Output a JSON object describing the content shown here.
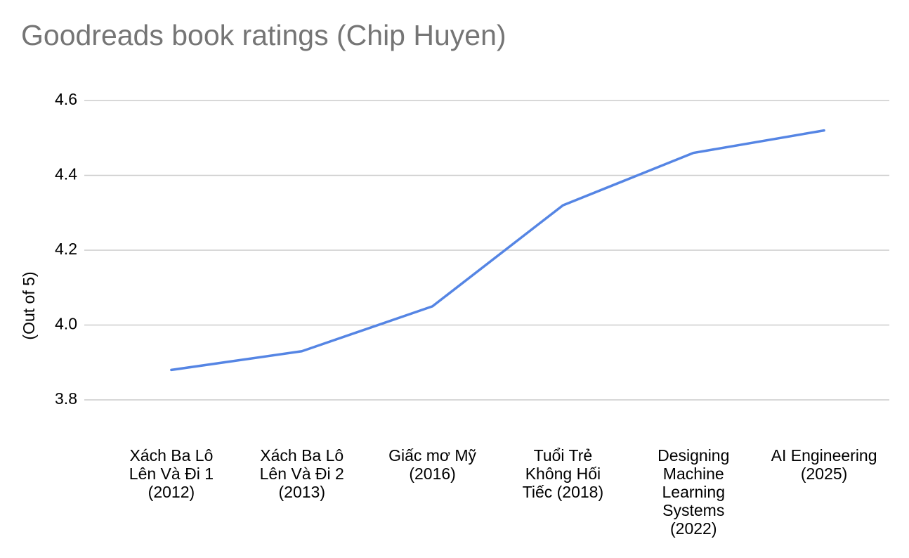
{
  "chart_data": {
    "type": "line",
    "title": "Goodreads book ratings (Chip Huyen)",
    "y_label": "(Out of 5)",
    "categories": [
      "Xách Ba Lô\nLên Và Đi 1\n(2012)",
      "Xách Ba Lô\nLên Và Đi 2\n(2013)",
      "Giấc mơ Mỹ\n(2016)",
      "Tuổi Trẻ\nKhông Hối\nTiếc (2018)",
      "Designing\nMachine\nLearning\nSystems\n(2022)",
      "AI Engineering\n(2025)"
    ],
    "values": [
      3.88,
      3.93,
      4.05,
      4.32,
      4.46,
      4.52
    ],
    "color": "#5585e4",
    "ylim": [
      3.8,
      4.6
    ],
    "yticks": [
      {
        "value": 3.8,
        "label": "3.8"
      },
      {
        "value": 4.0,
        "label": "4.0"
      },
      {
        "value": 4.2,
        "label": "4.2"
      },
      {
        "value": 4.4,
        "label": "4.4"
      },
      {
        "value": 4.6,
        "label": "4.6"
      }
    ],
    "grid": true
  }
}
